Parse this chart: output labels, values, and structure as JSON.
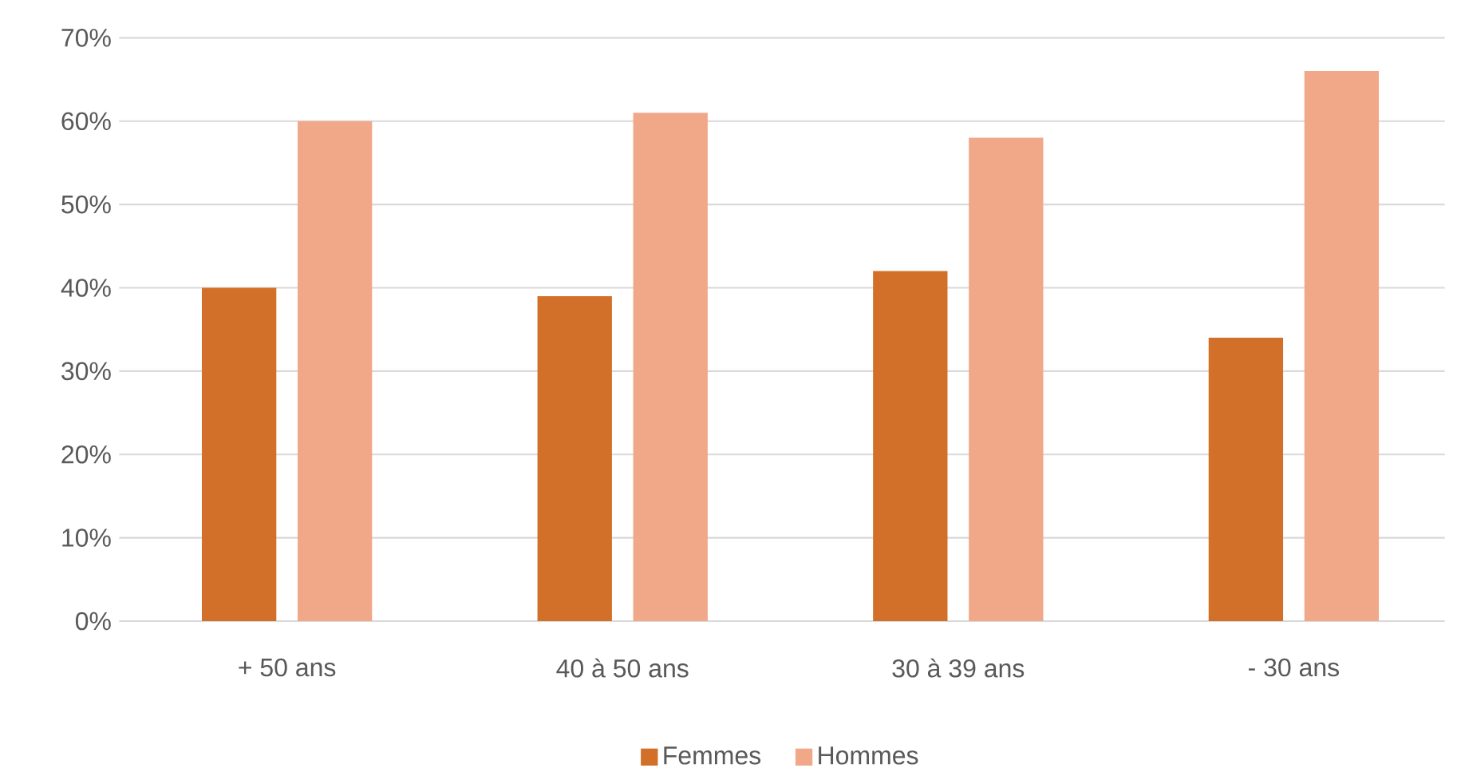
{
  "chart_data": {
    "type": "bar",
    "categories": [
      "+ 50 ans",
      "40 à 50 ans",
      "30 à 39 ans",
      "- 30 ans"
    ],
    "series": [
      {
        "name": "Femmes",
        "color": "#d2702a",
        "values": [
          40,
          39,
          42,
          34
        ]
      },
      {
        "name": "Hommes",
        "color": "#f0a889",
        "values": [
          60,
          61,
          58,
          66
        ]
      }
    ],
    "ylim": [
      0,
      70
    ],
    "yticks": [
      {
        "value": 0,
        "label": "0%"
      },
      {
        "value": 10,
        "label": "10%"
      },
      {
        "value": 20,
        "label": "20%"
      },
      {
        "value": 30,
        "label": "30%"
      },
      {
        "value": 40,
        "label": "40%"
      },
      {
        "value": 50,
        "label": "50%"
      },
      {
        "value": 60,
        "label": "60%"
      },
      {
        "value": 70,
        "label": "70%"
      }
    ],
    "grid": "y",
    "legend": "bottom"
  }
}
